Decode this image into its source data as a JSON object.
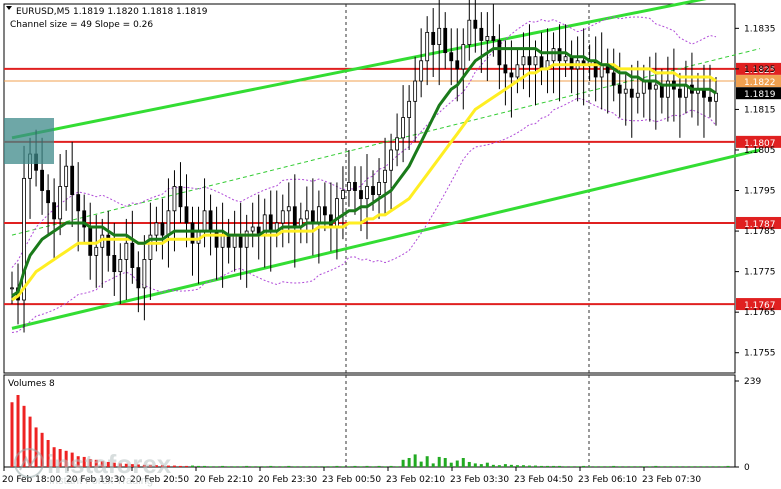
{
  "chart_data": [
    {
      "type": "candlestick",
      "symbol_header": "EURUSD,M5  1.1819 1.1820 1.1818 1.1819",
      "indicator_text": "Channel size = 49 Slope = 0.26",
      "ylim": [
        1.175,
        1.1841
      ],
      "yticks": [
        "1.1835",
        "1.1825",
        "1.1815",
        "1.1805",
        "1.1795",
        "1.1785",
        "1.1775",
        "1.1765",
        "1.1755"
      ],
      "xticks": [
        "20 Feb 18:00",
        "20 Feb 19:30",
        "20 Feb 20:50",
        "20 Feb 22:10",
        "20 Feb 23:30",
        "23 Feb 00:50",
        "23 Feb 02:10",
        "23 Feb 03:30",
        "23 Feb 04:50",
        "23 Feb 06:10",
        "23 Feb 07:30"
      ],
      "levels": [
        {
          "value": 1.1825,
          "label": "1.1825",
          "color": "#e02020"
        },
        {
          "value": 1.1807,
          "label": "1.1807",
          "color": "#e02020"
        },
        {
          "value": 1.1787,
          "label": "1.1787",
          "color": "#e02020"
        },
        {
          "value": 1.1767,
          "label": "1.1767",
          "color": "#e02020"
        }
      ],
      "current_prices": [
        {
          "value": 1.1822,
          "label": "1.1822",
          "color": "#f0a050"
        },
        {
          "value": 1.1819,
          "label": "1.1819",
          "color": "#000000"
        }
      ],
      "channel_upper": {
        "start": 1.1808,
        "end": 1.1845
      },
      "channel_lower": {
        "start": 1.1761,
        "end": 1.1805
      },
      "channel_mid": {
        "start": 1.1784,
        "end": 1.183
      },
      "close": [
        1.1771,
        1.1768,
        1.1798,
        1.1804,
        1.18,
        1.1795,
        1.1792,
        1.1788,
        1.1796,
        1.1801,
        1.1794,
        1.179,
        1.1786,
        1.1779,
        1.1781,
        1.1784,
        1.1779,
        1.1775,
        1.1778,
        1.1782,
        1.1776,
        1.1771,
        1.1778,
        1.1784,
        1.1787,
        1.1784,
        1.179,
        1.1796,
        1.1791,
        1.1787,
        1.1782,
        1.1785,
        1.179,
        1.1785,
        1.1781,
        1.1784,
        1.1781,
        1.1784,
        1.1781,
        1.1785,
        1.1786,
        1.1784,
        1.1789,
        1.1785,
        1.1787,
        1.179,
        1.1791,
        1.1786,
        1.1788,
        1.179,
        1.1787,
        1.1791,
        1.1789,
        1.1786,
        1.1793,
        1.1795,
        1.1797,
        1.1795,
        1.1793,
        1.1796,
        1.1794,
        1.1797,
        1.18,
        1.1805,
        1.1808,
        1.1813,
        1.1817,
        1.1822,
        1.1827,
        1.1834,
        1.1831,
        1.1835,
        1.1829,
        1.1827,
        1.1825,
        1.1831,
        1.1837,
        1.1835,
        1.1832,
        1.1833,
        1.1832,
        1.1826,
        1.1824,
        1.1823,
        1.1826,
        1.1828,
        1.1826,
        1.1828,
        1.1825,
        1.1827,
        1.183,
        1.1827,
        1.1828,
        1.1825,
        1.1827,
        1.1826,
        1.1827,
        1.1823,
        1.1826,
        1.1824,
        1.1821,
        1.1819,
        1.182,
        1.1818,
        1.1819,
        1.1822,
        1.182,
        1.1821,
        1.1818,
        1.1822,
        1.182,
        1.1818,
        1.1821,
        1.1819,
        1.182,
        1.1818,
        1.1817,
        1.1819
      ],
      "ma_green": [
        1.1769,
        1.177,
        1.1775,
        1.1779,
        1.1781,
        1.1783,
        1.1784,
        1.1785,
        1.1786,
        1.1787,
        1.1787,
        1.1787,
        1.1787,
        1.1786,
        1.1786,
        1.1786,
        1.1785,
        1.1784,
        1.1784,
        1.1784,
        1.1783,
        1.1782,
        1.1782,
        1.1783,
        1.1783,
        1.1783,
        1.1784,
        1.1785,
        1.1785,
        1.1785,
        1.1785,
        1.1785,
        1.1785,
        1.1785,
        1.1785,
        1.1785,
        1.1784,
        1.1784,
        1.1784,
        1.1784,
        1.1784,
        1.1784,
        1.1785,
        1.1785,
        1.1785,
        1.1786,
        1.1786,
        1.1786,
        1.1786,
        1.1787,
        1.1787,
        1.1787,
        1.1787,
        1.1787,
        1.1788,
        1.1789,
        1.179,
        1.179,
        1.1791,
        1.1791,
        1.1792,
        1.1793,
        1.1794,
        1.1795,
        1.1797,
        1.1799,
        1.1801,
        1.1804,
        1.1807,
        1.181,
        1.1813,
        1.1816,
        1.1818,
        1.182,
        1.1821,
        1.1823,
        1.1825,
        1.1827,
        1.1828,
        1.1829,
        1.183,
        1.183,
        1.183,
        1.183,
        1.183,
        1.183,
        1.183,
        1.183,
        1.1829,
        1.1829,
        1.1829,
        1.1829,
        1.1829,
        1.1828,
        1.1828,
        1.1828,
        1.1827,
        1.1827,
        1.1826,
        1.1826,
        1.1825,
        1.1824,
        1.1824,
        1.1823,
        1.1823,
        1.1822,
        1.1822,
        1.1822,
        1.1821,
        1.1821,
        1.1821,
        1.1821,
        1.1821,
        1.182,
        1.182,
        1.182,
        1.182,
        1.1819
      ],
      "ma_yellow": [
        1.1768,
        1.1769,
        1.1771,
        1.1773,
        1.1775,
        1.1776,
        1.1777,
        1.1778,
        1.1779,
        1.178,
        1.1781,
        1.1782,
        1.1782,
        1.1782,
        1.1782,
        1.1783,
        1.1783,
        1.1783,
        1.1783,
        1.1783,
        1.1783,
        1.1782,
        1.1782,
        1.1782,
        1.1782,
        1.1782,
        1.1783,
        1.1783,
        1.1783,
        1.1783,
        1.1783,
        1.1783,
        1.1784,
        1.1784,
        1.1784,
        1.1784,
        1.1784,
        1.1784,
        1.1784,
        1.1784,
        1.1784,
        1.1784,
        1.1784,
        1.1784,
        1.1784,
        1.1785,
        1.1785,
        1.1785,
        1.1785,
        1.1785,
        1.1785,
        1.1786,
        1.1786,
        1.1786,
        1.1786,
        1.1786,
        1.1787,
        1.1787,
        1.1787,
        1.1788,
        1.1788,
        1.1789,
        1.1789,
        1.179,
        1.1791,
        1.1792,
        1.1793,
        1.1795,
        1.1797,
        1.1799,
        1.1801,
        1.1803,
        1.1805,
        1.1807,
        1.1809,
        1.1811,
        1.1813,
        1.1815,
        1.1816,
        1.1817,
        1.1818,
        1.1819,
        1.182,
        1.1821,
        1.1822,
        1.1823,
        1.1824,
        1.1824,
        1.1825,
        1.1825,
        1.1826,
        1.1826,
        1.1826,
        1.1826,
        1.1826,
        1.1826,
        1.1826,
        1.1826,
        1.1826,
        1.1826,
        1.1826,
        1.1825,
        1.1825,
        1.1825,
        1.1825,
        1.1825,
        1.1825,
        1.1824,
        1.1824,
        1.1824,
        1.1824,
        1.1823,
        1.1823,
        1.1823,
        1.1823,
        1.1823,
        1.1823,
        1.1822
      ],
      "bands_width": 0.0008
    },
    {
      "type": "bar",
      "title": "Volumes 8",
      "ylim": [
        0,
        239
      ],
      "yticks": [
        "239",
        "0"
      ],
      "values": [
        180,
        200,
        170,
        140,
        110,
        95,
        75,
        55,
        50,
        45,
        40,
        30,
        28,
        22,
        20,
        16,
        14,
        12,
        10,
        9,
        8,
        7,
        6,
        6,
        5,
        5,
        4,
        4,
        3,
        3,
        4,
        3,
        3,
        2,
        2,
        3,
        2,
        2,
        2,
        3,
        2,
        2,
        2,
        3,
        2,
        2,
        3,
        2,
        2,
        2,
        2,
        2,
        2,
        2,
        3,
        2,
        2,
        3,
        2,
        3,
        2,
        3,
        2,
        3,
        2,
        20,
        25,
        35,
        15,
        30,
        10,
        28,
        25,
        12,
        18,
        25,
        14,
        10,
        8,
        12,
        6,
        5,
        8,
        6,
        5,
        5,
        4,
        4,
        3,
        3,
        3,
        3,
        2,
        2,
        2,
        3,
        2,
        2,
        2,
        2,
        3,
        2,
        2,
        2,
        2,
        2,
        2,
        3,
        2,
        2,
        2,
        2,
        2,
        2,
        2,
        2,
        2,
        2,
        2,
        3
      ]
    }
  ],
  "watermark": {
    "brand": "instaforex",
    "tagline": "Instant Forex Trading"
  }
}
